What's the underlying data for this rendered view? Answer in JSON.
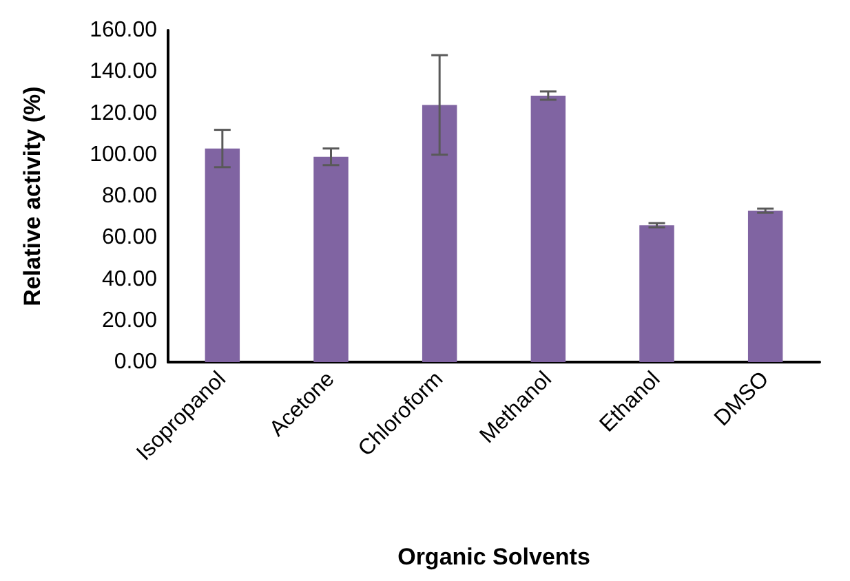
{
  "chart_data": {
    "type": "bar",
    "xlabel": "Organic Solvents",
    "ylabel": "Relative activity (%)",
    "categories": [
      "Isopropanol",
      "Acetone",
      "Chloroform",
      "Methanol",
      "Ethanol",
      "DMSO"
    ],
    "values": [
      103,
      99,
      124,
      128.5,
      66,
      73
    ],
    "errors": [
      9,
      4,
      24,
      2,
      1,
      1
    ],
    "color": "#8064a2",
    "ylim": [
      0,
      160
    ],
    "yticks": [
      {
        "value": 0,
        "label": "0.00"
      },
      {
        "value": 20,
        "label": "20.00"
      },
      {
        "value": 40,
        "label": "40.00"
      },
      {
        "value": 60,
        "label": "60.00"
      },
      {
        "value": 80,
        "label": "80.00"
      },
      {
        "value": 100,
        "label": "100.00"
      },
      {
        "value": 120,
        "label": "120.00"
      },
      {
        "value": 140,
        "label": "140.00"
      },
      {
        "value": 160,
        "label": "160.00"
      }
    ],
    "grid": false
  }
}
